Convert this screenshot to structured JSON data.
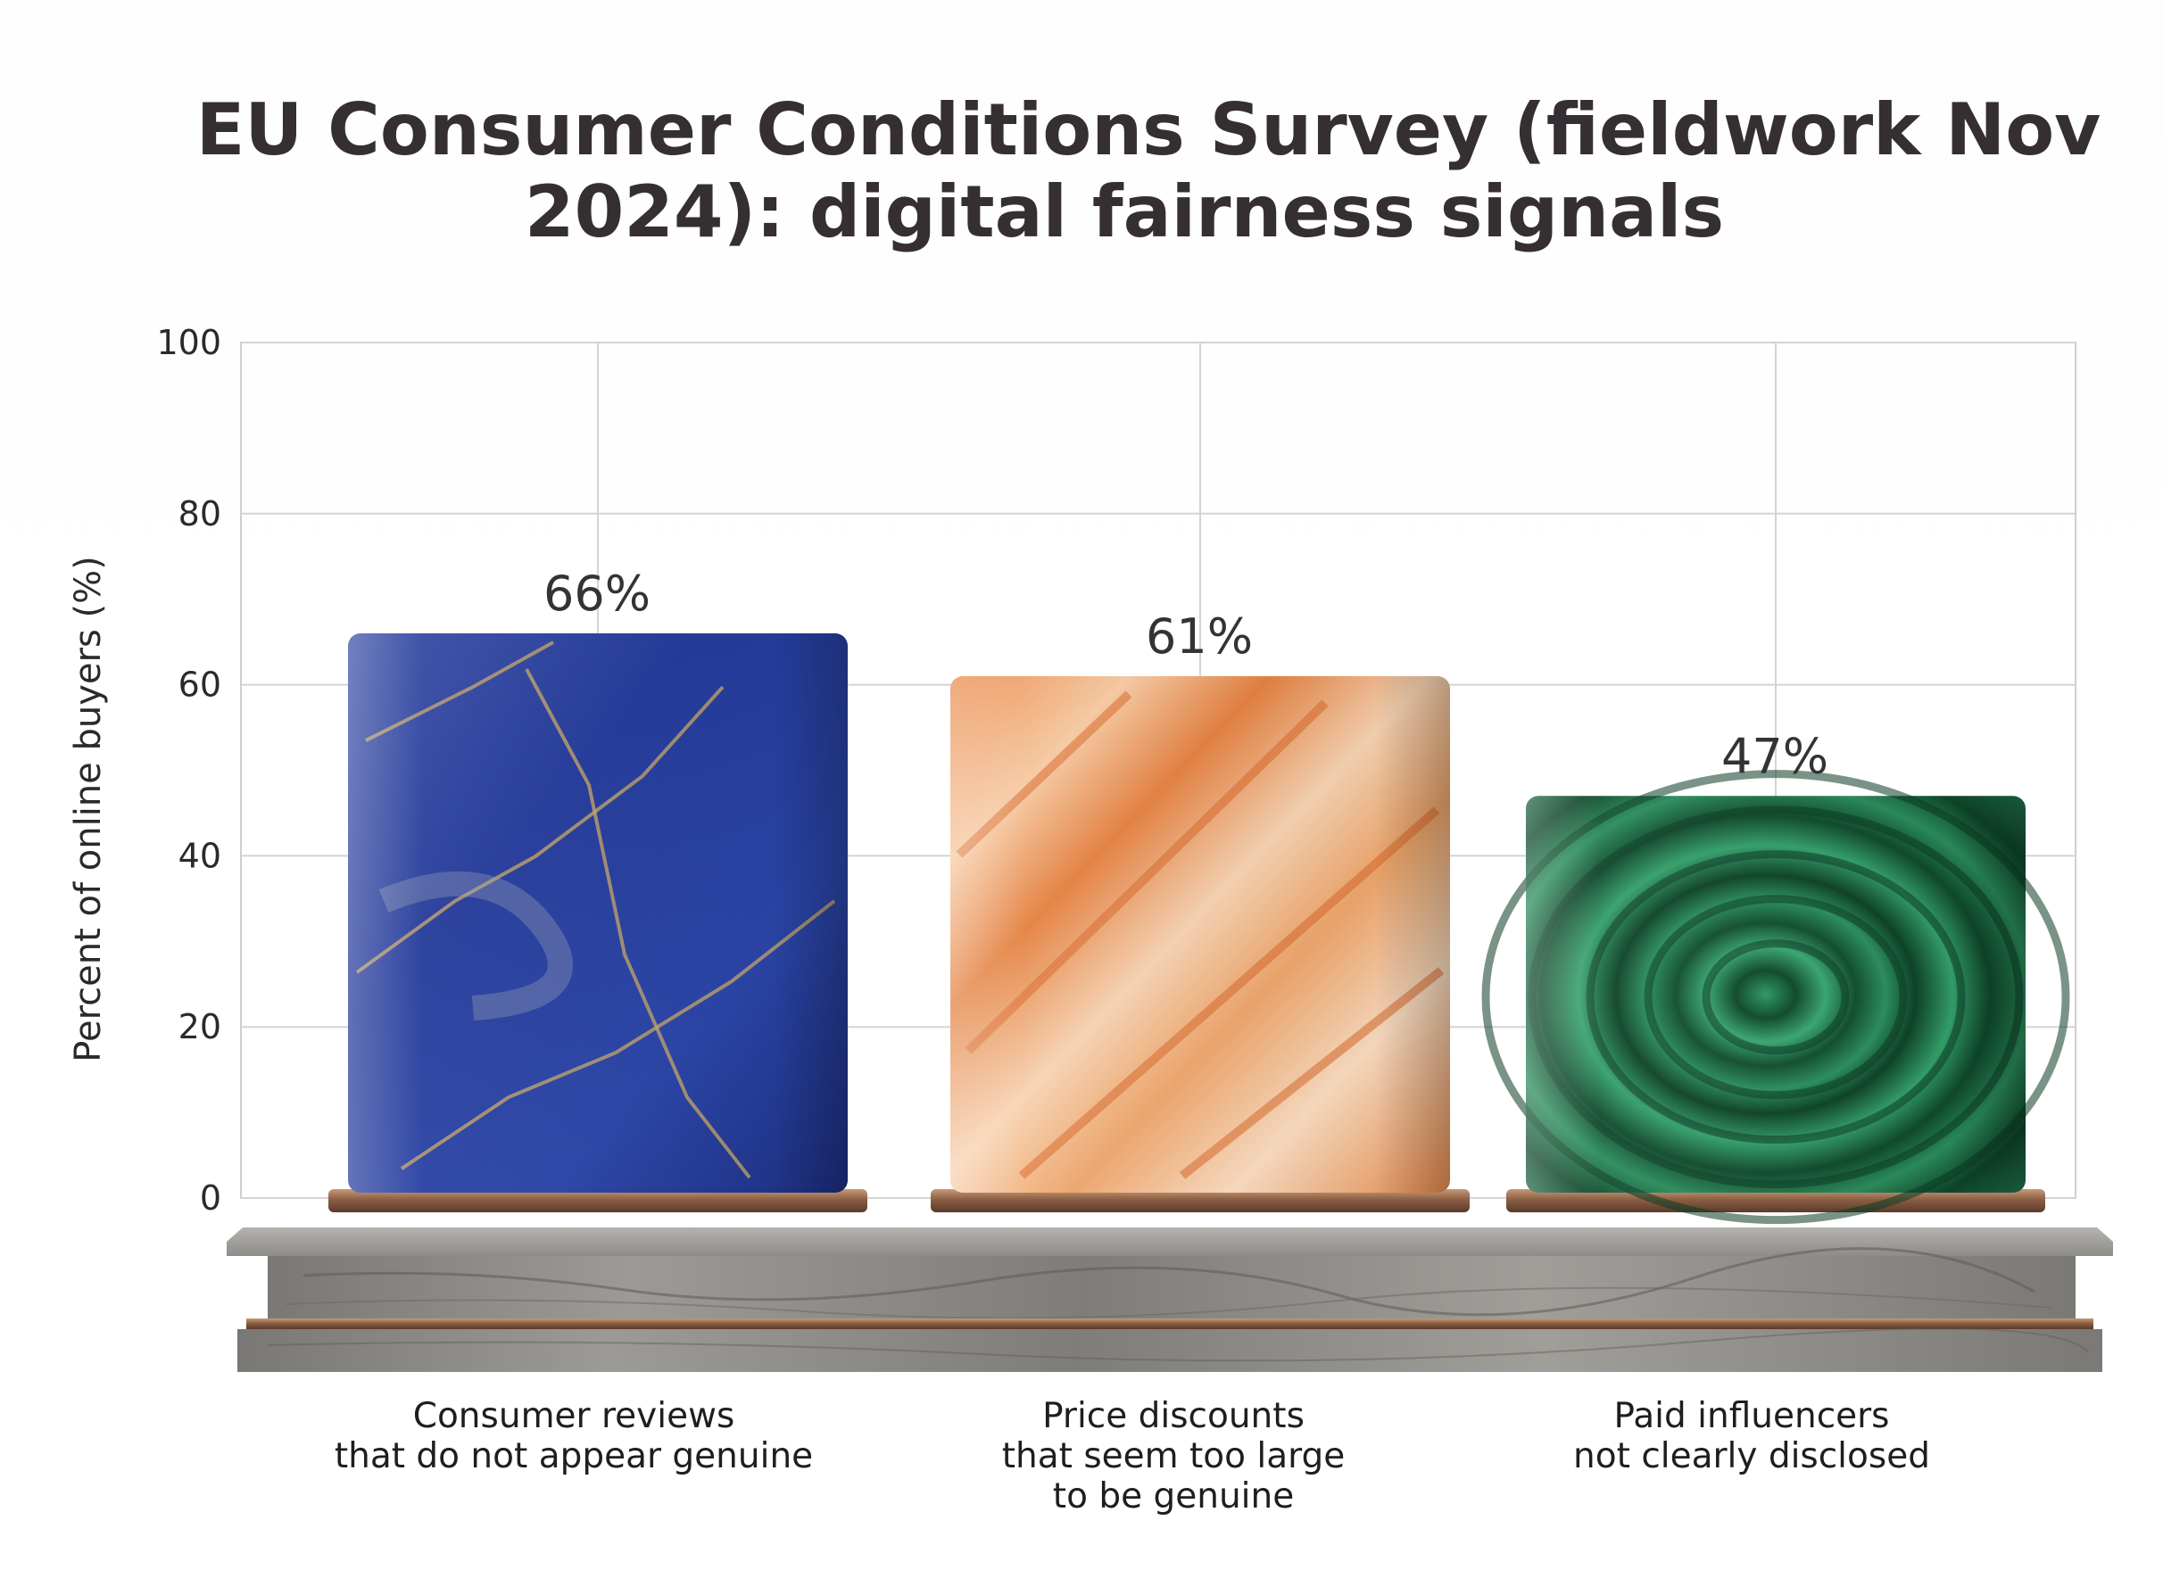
{
  "chart_data": {
    "type": "bar",
    "title": "EU Consumer Conditions Survey (fieldwork Nov 2024): digital fairness signals",
    "title_lines": [
      "EU Consumer Conditions Survey (fieldwork Nov",
      "2024): digital fairness signals"
    ],
    "xlabel": "",
    "ylabel": "Percent of online buyers (%)",
    "ylim": [
      0,
      100
    ],
    "yticks": [
      0,
      20,
      40,
      60,
      80,
      100
    ],
    "grid": true,
    "categories": [
      "Consumer reviews that do not appear genuine",
      "Price discounts that seem too large to be genuine",
      "Paid influencers not clearly disclosed"
    ],
    "category_lines": [
      [
        "Consumer reviews",
        "that do not appear genuine"
      ],
      [
        "Price discounts",
        "that seem too large",
        "to be genuine"
      ],
      [
        "Paid influencers",
        "not clearly disclosed"
      ]
    ],
    "values": [
      66,
      61,
      47
    ],
    "value_labels": [
      "66%",
      "61%",
      "47%"
    ],
    "colors": [
      "#2a3f9e",
      "#eba36b",
      "#1f7a4c"
    ],
    "textures": [
      "lapis-lazuli-marble",
      "orange-onyx-marble",
      "malachite"
    ]
  }
}
